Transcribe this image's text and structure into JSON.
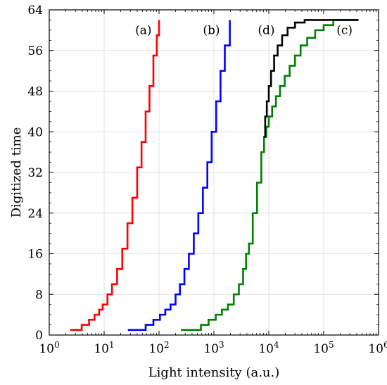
{
  "chart_data": {
    "type": "line",
    "title": "",
    "xlabel": "Light intensity (a.u.)",
    "ylabel": "Digitized time",
    "xscale": "log",
    "xlim": [
      1,
      1000000
    ],
    "ylim": [
      0,
      64
    ],
    "grid": true,
    "x_ticks": [
      1,
      10,
      100,
      1000,
      10000,
      100000,
      1000000
    ],
    "x_tick_labels": [
      {
        "base": "10",
        "exp": "0"
      },
      {
        "base": "10",
        "exp": "1"
      },
      {
        "base": "10",
        "exp": "2"
      },
      {
        "base": "10",
        "exp": "3"
      },
      {
        "base": "10",
        "exp": "4"
      },
      {
        "base": "10",
        "exp": "5"
      },
      {
        "base": "10",
        "exp": "6"
      }
    ],
    "y_ticks": [
      0,
      8,
      16,
      24,
      32,
      40,
      48,
      56,
      64
    ],
    "y_tick_labels": [
      "0",
      "8",
      "16",
      "24",
      "32",
      "40",
      "48",
      "56",
      "64"
    ],
    "series": [
      {
        "name": "(a)",
        "color": "#ff0000",
        "label_at": [
          52,
          59.2
        ],
        "x": [
          2.4,
          3.9,
          5.3,
          6.7,
          8.1,
          9.4,
          11.5,
          13.9,
          17.2,
          21.4,
          26.6,
          32.7,
          40.0,
          48.0,
          57.0,
          67.0,
          79.0,
          91.0,
          100.0
        ],
        "y": [
          1,
          2,
          3,
          4,
          5,
          6,
          8,
          10,
          13,
          17,
          22,
          27,
          33,
          38,
          44,
          49,
          55,
          59,
          62
        ]
      },
      {
        "name": "(b)",
        "color": "#0000ff",
        "label_at": [
          900,
          59.2
        ],
        "x": [
          27,
          57,
          79,
          104,
          130,
          162,
          200,
          240,
          290,
          350,
          430,
          520,
          630,
          760,
          910,
          1100,
          1320,
          1580,
          1950
        ],
        "y": [
          1,
          2,
          3,
          4,
          5,
          6,
          8,
          10,
          13,
          16,
          20,
          24,
          29,
          34,
          40,
          46,
          52,
          57,
          62
        ]
      },
      {
        "name": "(c)",
        "color": "#008000",
        "label_at": [
          240000,
          59.2
        ],
        "x": [
          250,
          580,
          800,
          1080,
          1400,
          1800,
          2300,
          2850,
          3400,
          3850,
          4350,
          5100,
          6100,
          7300,
          8200,
          9000,
          10000,
          11500,
          13500,
          16000,
          19500,
          24000,
          30000,
          38000,
          50000,
          70000,
          100000,
          150000,
          430000
        ],
        "y": [
          1,
          2,
          3,
          4,
          5,
          6,
          8,
          10,
          13,
          16,
          18,
          24,
          30,
          36,
          39,
          41,
          43,
          45,
          47,
          49,
          51,
          53,
          55,
          57,
          58.5,
          60,
          61,
          62,
          62
        ]
      },
      {
        "name": "(d)",
        "color": "#000000",
        "label_at": [
          9000,
          59.2
        ],
        "x": [
          8200,
          8600,
          9200,
          10000,
          11000,
          12500,
          14500,
          17500,
          22000,
          30000,
          45000,
          430000
        ],
        "y": [
          39,
          43,
          46,
          49,
          52,
          55,
          57,
          59,
          60.5,
          61.5,
          62,
          62
        ]
      }
    ]
  }
}
